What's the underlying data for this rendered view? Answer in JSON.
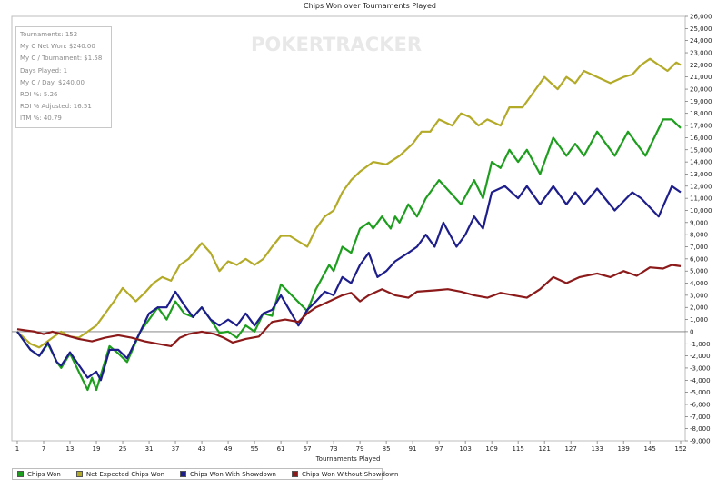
{
  "chart_data": {
    "type": "line",
    "title": "Chips Won over Tournaments Played",
    "xlabel": "Tournaments Played",
    "ylabel": "",
    "watermark": "POKERTRACKER",
    "xlim": [
      1,
      152
    ],
    "ylim": [
      -9000,
      26000
    ],
    "x_ticks": [
      1,
      7,
      13,
      19,
      25,
      31,
      37,
      43,
      49,
      55,
      61,
      67,
      73,
      79,
      85,
      91,
      97,
      103,
      109,
      115,
      121,
      127,
      133,
      139,
      145,
      152
    ],
    "y_ticks": [
      -9000,
      -8000,
      -7000,
      -6000,
      -5000,
      -4000,
      -3000,
      -2000,
      -1000,
      0,
      1000,
      2000,
      3000,
      4000,
      5000,
      6000,
      7000,
      8000,
      9000,
      10000,
      11000,
      12000,
      13000,
      14000,
      15000,
      16000,
      17000,
      18000,
      19000,
      20000,
      21000,
      22000,
      23000,
      24000,
      25000,
      26000
    ],
    "y_tick_labels": [
      "-9,000",
      "-8,000",
      "-7,000",
      "-6,000",
      "-5,000",
      "-4,000",
      "-3,000",
      "-2,000",
      "-1,000",
      "0",
      "1,000",
      "2,000",
      "3,000",
      "4,000",
      "5,000",
      "6,000",
      "7,000",
      "8,000",
      "9,000",
      "10,000",
      "11,000",
      "12,000",
      "13,000",
      "14,000",
      "15,000",
      "16,000",
      "17,000",
      "18,000",
      "19,000",
      "20,000",
      "21,000",
      "22,000",
      "23,000",
      "24,000",
      "25,000",
      "26,000"
    ],
    "y_axis_side": "right",
    "grid": false,
    "legend_position": "bottom",
    "stats": [
      "Tournaments: 152",
      "My C Net Won: $240.00",
      "My C / Tournament: $1.58",
      "Days Played: 1",
      "My C / Day: $240.00",
      "ROI %: 5.26",
      "ROI % Adjusted: 16.51",
      "ITM %: 40.79"
    ],
    "series": [
      {
        "name": "Chips Won",
        "color": "#1e9e1e",
        "points": [
          [
            1,
            0
          ],
          [
            4,
            -1500
          ],
          [
            6,
            -2000
          ],
          [
            8,
            -1000
          ],
          [
            10,
            -2500
          ],
          [
            11,
            -3000
          ],
          [
            13,
            -1800
          ],
          [
            17,
            -4800
          ],
          [
            18,
            -3800
          ],
          [
            19,
            -4800
          ],
          [
            22,
            -1200
          ],
          [
            24,
            -1800
          ],
          [
            26,
            -2500
          ],
          [
            29,
            0
          ],
          [
            31,
            1000
          ],
          [
            33,
            2000
          ],
          [
            35,
            1000
          ],
          [
            37,
            2500
          ],
          [
            39,
            1500
          ],
          [
            41,
            1200
          ],
          [
            43,
            2000
          ],
          [
            45,
            1000
          ],
          [
            47,
            -100
          ],
          [
            49,
            0
          ],
          [
            51,
            -500
          ],
          [
            53,
            500
          ],
          [
            55,
            0
          ],
          [
            57,
            1500
          ],
          [
            59,
            1300
          ],
          [
            61,
            3900
          ],
          [
            67,
            1700
          ],
          [
            69,
            3500
          ],
          [
            72,
            5500
          ],
          [
            73,
            5000
          ],
          [
            75,
            7000
          ],
          [
            77,
            6500
          ],
          [
            79,
            8500
          ],
          [
            81,
            9000
          ],
          [
            82,
            8500
          ],
          [
            84,
            9500
          ],
          [
            86,
            8500
          ],
          [
            87,
            9500
          ],
          [
            88,
            9000
          ],
          [
            90,
            10500
          ],
          [
            92,
            9500
          ],
          [
            94,
            11000
          ],
          [
            97,
            12500
          ],
          [
            102,
            10500
          ],
          [
            105,
            12500
          ],
          [
            107,
            11000
          ],
          [
            109,
            14000
          ],
          [
            111,
            13500
          ],
          [
            113,
            15000
          ],
          [
            115,
            14000
          ],
          [
            117,
            15000
          ],
          [
            120,
            13000
          ],
          [
            123,
            16000
          ],
          [
            126,
            14500
          ],
          [
            128,
            15500
          ],
          [
            130,
            14500
          ],
          [
            133,
            16500
          ],
          [
            137,
            14500
          ],
          [
            140,
            16500
          ],
          [
            144,
            14500
          ],
          [
            148,
            17500
          ],
          [
            150,
            17500
          ],
          [
            152,
            16800
          ]
        ]
      },
      {
        "name": "Net Expected Chips Won",
        "color": "#b3aa28",
        "points": [
          [
            1,
            0
          ],
          [
            4,
            -1000
          ],
          [
            6,
            -1300
          ],
          [
            9,
            -500
          ],
          [
            11,
            0
          ],
          [
            13,
            -400
          ],
          [
            15,
            -500
          ],
          [
            17,
            0
          ],
          [
            19,
            500
          ],
          [
            21,
            1500
          ],
          [
            23,
            2500
          ],
          [
            25,
            3600
          ],
          [
            28,
            2500
          ],
          [
            30,
            3200
          ],
          [
            32,
            4000
          ],
          [
            34,
            4500
          ],
          [
            36,
            4200
          ],
          [
            38,
            5500
          ],
          [
            40,
            6000
          ],
          [
            43,
            7300
          ],
          [
            45,
            6500
          ],
          [
            47,
            5000
          ],
          [
            49,
            5800
          ],
          [
            51,
            5500
          ],
          [
            53,
            6000
          ],
          [
            55,
            5500
          ],
          [
            57,
            6000
          ],
          [
            59,
            7000
          ],
          [
            61,
            7900
          ],
          [
            63,
            7900
          ],
          [
            67,
            7000
          ],
          [
            69,
            8500
          ],
          [
            71,
            9500
          ],
          [
            73,
            10000
          ],
          [
            75,
            11500
          ],
          [
            77,
            12500
          ],
          [
            79,
            13200
          ],
          [
            82,
            14000
          ],
          [
            85,
            13800
          ],
          [
            88,
            14500
          ],
          [
            91,
            15500
          ],
          [
            93,
            16500
          ],
          [
            95,
            16500
          ],
          [
            97,
            17500
          ],
          [
            100,
            17000
          ],
          [
            102,
            18000
          ],
          [
            104,
            17700
          ],
          [
            106,
            17000
          ],
          [
            108,
            17500
          ],
          [
            111,
            17000
          ],
          [
            113,
            18500
          ],
          [
            116,
            18500
          ],
          [
            119,
            20000
          ],
          [
            121,
            21000
          ],
          [
            124,
            20000
          ],
          [
            126,
            21000
          ],
          [
            128,
            20500
          ],
          [
            130,
            21500
          ],
          [
            133,
            21000
          ],
          [
            136,
            20500
          ],
          [
            139,
            21000
          ],
          [
            141,
            21200
          ],
          [
            143,
            22000
          ],
          [
            145,
            22500
          ],
          [
            147,
            22000
          ],
          [
            149,
            21500
          ],
          [
            151,
            22200
          ],
          [
            152,
            22000
          ]
        ]
      },
      {
        "name": "Chips Won With Showdown",
        "color": "#1d1d8c",
        "points": [
          [
            1,
            0
          ],
          [
            4,
            -1500
          ],
          [
            6,
            -2000
          ],
          [
            8,
            -900
          ],
          [
            10,
            -2500
          ],
          [
            11,
            -2800
          ],
          [
            13,
            -1700
          ],
          [
            17,
            -3800
          ],
          [
            19,
            -3300
          ],
          [
            20,
            -4000
          ],
          [
            22,
            -1500
          ],
          [
            24,
            -1500
          ],
          [
            26,
            -2200
          ],
          [
            29,
            0
          ],
          [
            31,
            1500
          ],
          [
            33,
            2000
          ],
          [
            35,
            2000
          ],
          [
            37,
            3300
          ],
          [
            39,
            2200
          ],
          [
            41,
            1200
          ],
          [
            43,
            2000
          ],
          [
            45,
            1000
          ],
          [
            47,
            500
          ],
          [
            49,
            1000
          ],
          [
            51,
            500
          ],
          [
            53,
            1500
          ],
          [
            55,
            500
          ],
          [
            57,
            1500
          ],
          [
            59,
            1800
          ],
          [
            61,
            3000
          ],
          [
            65,
            500
          ],
          [
            67,
            1800
          ],
          [
            69,
            2500
          ],
          [
            71,
            3300
          ],
          [
            73,
            3000
          ],
          [
            75,
            4500
          ],
          [
            77,
            4000
          ],
          [
            79,
            5500
          ],
          [
            81,
            6500
          ],
          [
            83,
            4500
          ],
          [
            85,
            5000
          ],
          [
            87,
            5800
          ],
          [
            90,
            6500
          ],
          [
            92,
            7000
          ],
          [
            94,
            8000
          ],
          [
            96,
            7000
          ],
          [
            98,
            9000
          ],
          [
            101,
            7000
          ],
          [
            103,
            8000
          ],
          [
            105,
            9500
          ],
          [
            107,
            8500
          ],
          [
            109,
            11500
          ],
          [
            112,
            12000
          ],
          [
            115,
            11000
          ],
          [
            117,
            12000
          ],
          [
            120,
            10500
          ],
          [
            123,
            12000
          ],
          [
            126,
            10500
          ],
          [
            128,
            11500
          ],
          [
            130,
            10500
          ],
          [
            133,
            11800
          ],
          [
            137,
            10000
          ],
          [
            141,
            11500
          ],
          [
            143,
            11000
          ],
          [
            147,
            9500
          ],
          [
            150,
            12000
          ],
          [
            152,
            11500
          ]
        ]
      },
      {
        "name": "Chips Won Without Showdown",
        "color": "#8c1a1a",
        "points": [
          [
            1,
            200
          ],
          [
            3,
            100
          ],
          [
            5,
            0
          ],
          [
            7,
            -200
          ],
          [
            9,
            0
          ],
          [
            12,
            -300
          ],
          [
            15,
            -600
          ],
          [
            18,
            -800
          ],
          [
            21,
            -500
          ],
          [
            24,
            -300
          ],
          [
            27,
            -500
          ],
          [
            30,
            -800
          ],
          [
            33,
            -1000
          ],
          [
            36,
            -1200
          ],
          [
            38,
            -500
          ],
          [
            40,
            -200
          ],
          [
            43,
            0
          ],
          [
            46,
            -200
          ],
          [
            48,
            -500
          ],
          [
            50,
            -900
          ],
          [
            53,
            -600
          ],
          [
            56,
            -400
          ],
          [
            59,
            800
          ],
          [
            62,
            1000
          ],
          [
            65,
            800
          ],
          [
            67,
            1500
          ],
          [
            69,
            2000
          ],
          [
            72,
            2500
          ],
          [
            75,
            3000
          ],
          [
            77,
            3200
          ],
          [
            79,
            2500
          ],
          [
            81,
            3000
          ],
          [
            84,
            3500
          ],
          [
            87,
            3000
          ],
          [
            90,
            2800
          ],
          [
            92,
            3300
          ],
          [
            96,
            3400
          ],
          [
            99,
            3500
          ],
          [
            102,
            3300
          ],
          [
            105,
            3000
          ],
          [
            108,
            2800
          ],
          [
            111,
            3200
          ],
          [
            114,
            3000
          ],
          [
            117,
            2800
          ],
          [
            120,
            3500
          ],
          [
            123,
            4500
          ],
          [
            126,
            4000
          ],
          [
            129,
            4500
          ],
          [
            133,
            4800
          ],
          [
            136,
            4500
          ],
          [
            139,
            5000
          ],
          [
            142,
            4600
          ],
          [
            145,
            5300
          ],
          [
            148,
            5200
          ],
          [
            150,
            5500
          ],
          [
            152,
            5400
          ]
        ]
      }
    ]
  }
}
